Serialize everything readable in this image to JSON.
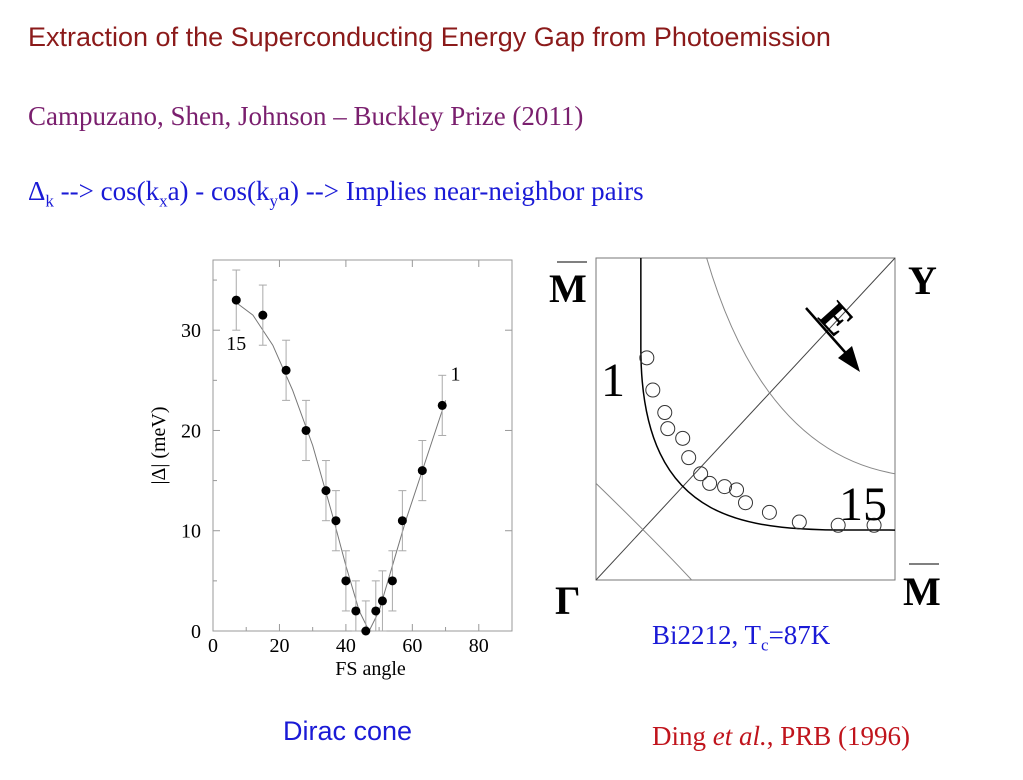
{
  "slide": {
    "title": "Extraction of the Superconducting Energy Gap from Photoemission",
    "subtitle": "Campuzano, Shen, Johnson – Buckley Prize (2011)",
    "formula": {
      "delta": "Δ",
      "delta_sub": "k",
      "p1": " --> cos(k",
      "sub_x": "x",
      "p2": "a) - cos(k",
      "sub_y": "y",
      "p3": "a)  -->  Implies near-neighbor pairs"
    },
    "left_caption": "Dirac cone",
    "sample": {
      "p1": "Bi2212, T",
      "sub": "c",
      "p2": "=87K"
    },
    "citation": {
      "author": "Ding ",
      "etal": "et al.",
      "rest": ", PRB (1996)"
    }
  },
  "chart_data": [
    {
      "type": "scatter",
      "xlabel": "FS angle",
      "ylabel": "|Δ| (meV)",
      "xlim": [
        0,
        90
      ],
      "ylim": [
        0,
        37
      ],
      "xticks": [
        0,
        20,
        40,
        60,
        80
      ],
      "yticks": [
        0,
        10,
        20,
        30
      ],
      "grid": false,
      "series": [
        {
          "points": [
            {
              "x": 7,
              "y": 33,
              "err": 3
            },
            {
              "x": 15,
              "y": 31.5,
              "err": 3
            },
            {
              "x": 22,
              "y": 26,
              "err": 3
            },
            {
              "x": 28,
              "y": 20,
              "err": 3
            },
            {
              "x": 34,
              "y": 14,
              "err": 3
            },
            {
              "x": 37,
              "y": 11,
              "err": 3
            },
            {
              "x": 40,
              "y": 5,
              "err": 3
            },
            {
              "x": 43,
              "y": 2,
              "err": 3
            },
            {
              "x": 46,
              "y": 0,
              "err": 3
            },
            {
              "x": 49,
              "y": 2,
              "err": 3
            },
            {
              "x": 51,
              "y": 3,
              "err": 3
            },
            {
              "x": 54,
              "y": 5,
              "err": 3
            },
            {
              "x": 57,
              "y": 11,
              "err": 3
            },
            {
              "x": 63,
              "y": 16,
              "err": 3
            },
            {
              "x": 69,
              "y": 22.5,
              "err": 3
            }
          ],
          "fit": [
            [
              6,
              33
            ],
            [
              12,
              31.5
            ],
            [
              18,
              28.5
            ],
            [
              24,
              24
            ],
            [
              30,
              18.5
            ],
            [
              36,
              11.5
            ],
            [
              40,
              6.5
            ],
            [
              44,
              2
            ],
            [
              47,
              0
            ],
            [
              50,
              2
            ],
            [
              54,
              6.5
            ],
            [
              58,
              11
            ],
            [
              62,
              15
            ],
            [
              66,
              19
            ],
            [
              70,
              23
            ]
          ]
        }
      ],
      "annotations": [
        {
          "text": "15",
          "x": 7,
          "y": 28
        },
        {
          "text": "1",
          "x": 73,
          "y": 25
        }
      ]
    },
    {
      "type": "diagram",
      "labels": {
        "m_top": "M",
        "y_corner": "Y",
        "e_label": "E",
        "one": "1",
        "fifteen": "15",
        "gamma": "Γ",
        "m_bottom": "M"
      },
      "markers": [
        {
          "x": 0.17,
          "y": 0.69
        },
        {
          "x": 0.19,
          "y": 0.59
        },
        {
          "x": 0.23,
          "y": 0.52
        },
        {
          "x": 0.24,
          "y": 0.47
        },
        {
          "x": 0.29,
          "y": 0.44
        },
        {
          "x": 0.31,
          "y": 0.38
        },
        {
          "x": 0.35,
          "y": 0.33
        },
        {
          "x": 0.38,
          "y": 0.3
        },
        {
          "x": 0.43,
          "y": 0.29
        },
        {
          "x": 0.47,
          "y": 0.28
        },
        {
          "x": 0.5,
          "y": 0.24
        },
        {
          "x": 0.58,
          "y": 0.21
        },
        {
          "x": 0.68,
          "y": 0.18
        },
        {
          "x": 0.81,
          "y": 0.17
        },
        {
          "x": 0.93,
          "y": 0.17
        }
      ]
    }
  ]
}
